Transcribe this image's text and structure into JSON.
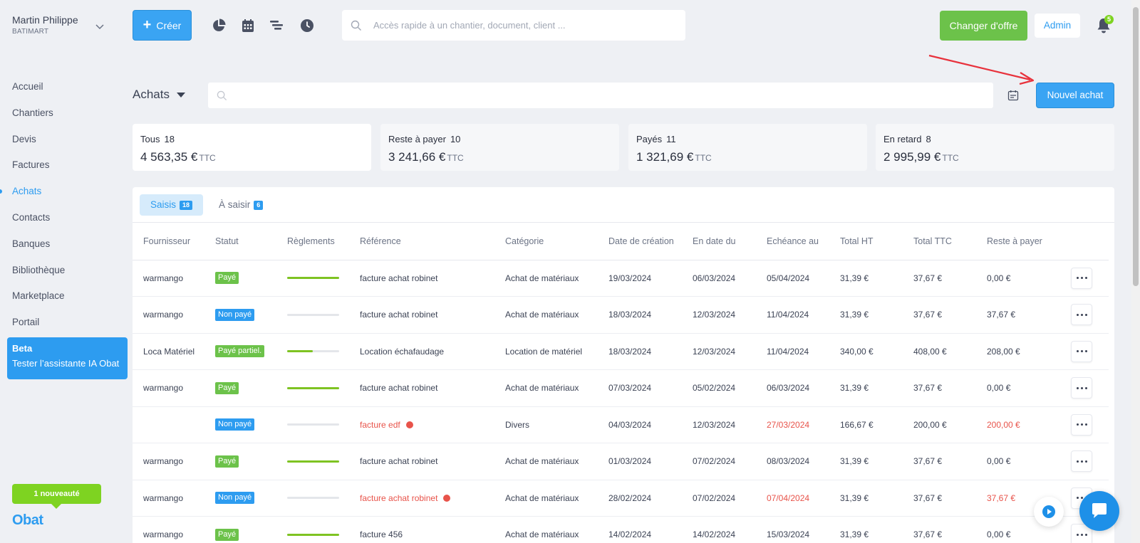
{
  "user": {
    "name": "Martin Philippe",
    "company": "BATIMART"
  },
  "nav": {
    "items": [
      {
        "label": "Accueil"
      },
      {
        "label": "Chantiers"
      },
      {
        "label": "Devis"
      },
      {
        "label": "Factures"
      },
      {
        "label": "Achats",
        "active": true
      },
      {
        "label": "Contacts"
      },
      {
        "label": "Banques"
      },
      {
        "label": "Bibliothèque"
      },
      {
        "label": "Marketplace"
      },
      {
        "label": "Portail"
      }
    ]
  },
  "beta": {
    "title": "Beta",
    "text": "Tester l’assistante IA Obat"
  },
  "news_badge": "1 nouveauté",
  "logo": "Obat",
  "topbar": {
    "create_label": "Créer",
    "icons": [
      "pie-chart-icon",
      "calendar-icon",
      "gantt-icon",
      "clock-icon"
    ],
    "search_placeholder": "Accès rapide à un chantier, document, client ...",
    "offer_label": "Changer d'offre",
    "admin_label": "Admin",
    "notif_count": "5"
  },
  "page": {
    "title": "Achats",
    "search_placeholder": "",
    "new_label": "Nouvel achat"
  },
  "summary": [
    {
      "label": "Tous",
      "count": "18",
      "amount": "4 563,35 €",
      "suffix": "TTC"
    },
    {
      "label": "Reste à payer",
      "count": "10",
      "amount": "3 241,66 €",
      "suffix": "TTC"
    },
    {
      "label": "Payés",
      "count": "11",
      "amount": "1 321,69 €",
      "suffix": "TTC"
    },
    {
      "label": "En retard",
      "count": "8",
      "amount": "2 995,99 €",
      "suffix": "TTC"
    }
  ],
  "tabs": [
    {
      "label": "Saisis",
      "count": "18"
    },
    {
      "label": "À saisir",
      "count": "6"
    }
  ],
  "table": {
    "headers": [
      "Fournisseur",
      "Statut",
      "Règlements",
      "Référence",
      "Catégorie",
      "Date de création",
      "En date du",
      "Echéance au",
      "Total HT",
      "Total TTC",
      "Reste à payer"
    ],
    "rows": [
      {
        "supplier": "warmango",
        "status": "Payé",
        "status_type": "paid",
        "progress": 1.0,
        "reference": "facture achat robinet",
        "late": false,
        "category": "Achat de matériaux",
        "created": "19/03/2024",
        "date": "06/03/2024",
        "due": "05/04/2024",
        "ht": "31,39 €",
        "ttc": "37,67 €",
        "remaining": "0,00 €"
      },
      {
        "supplier": "warmango",
        "status": "Non payé",
        "status_type": "unpaid",
        "progress": 0,
        "reference": "facture achat robinet",
        "late": false,
        "category": "Achat de matériaux",
        "created": "18/03/2024",
        "date": "12/03/2024",
        "due": "11/04/2024",
        "ht": "31,39 €",
        "ttc": "37,67 €",
        "remaining": "37,67 €"
      },
      {
        "supplier": "Loca Matériel",
        "status": "Payé partiel.",
        "status_type": "partial",
        "progress": 0.49,
        "reference": "Location échafaudage",
        "late": false,
        "category": "Location de matériel",
        "created": "18/03/2024",
        "date": "12/03/2024",
        "due": "11/04/2024",
        "ht": "340,00 €",
        "ttc": "408,00 €",
        "remaining": "208,00 €"
      },
      {
        "supplier": "warmango",
        "status": "Payé",
        "status_type": "paid",
        "progress": 1.0,
        "reference": "facture achat robinet",
        "late": false,
        "category": "Achat de matériaux",
        "created": "07/03/2024",
        "date": "05/02/2024",
        "due": "06/03/2024",
        "ht": "31,39 €",
        "ttc": "37,67 €",
        "remaining": "0,00 €"
      },
      {
        "supplier": "",
        "status": "Non payé",
        "status_type": "unpaid",
        "progress": 0,
        "reference": "facture edf",
        "late": true,
        "category": "Divers",
        "created": "04/03/2024",
        "date": "12/03/2024",
        "due": "27/03/2024",
        "ht": "166,67 €",
        "ttc": "200,00 €",
        "remaining": "200,00 €"
      },
      {
        "supplier": "warmango",
        "status": "Payé",
        "status_type": "paid",
        "progress": 1.0,
        "reference": "facture achat robinet",
        "late": false,
        "category": "Achat de matériaux",
        "created": "01/03/2024",
        "date": "07/02/2024",
        "due": "08/03/2024",
        "ht": "31,39 €",
        "ttc": "37,67 €",
        "remaining": "0,00 €"
      },
      {
        "supplier": "warmango",
        "status": "Non payé",
        "status_type": "unpaid",
        "progress": 0,
        "reference": "facture achat robinet",
        "late": true,
        "category": "Achat de matériaux",
        "created": "28/02/2024",
        "date": "07/02/2024",
        "due": "07/04/2024",
        "ht": "31,39 €",
        "ttc": "37,67 €",
        "remaining": "37,67 €"
      },
      {
        "supplier": "warmango",
        "status": "Payé",
        "status_type": "paid",
        "progress": 1.0,
        "reference": "facture 456",
        "late": false,
        "category": "Achat de matériaux",
        "created": "14/02/2024",
        "date": "14/02/2024",
        "due": "15/03/2024",
        "ht": "31,39 €",
        "ttc": "37,67 €",
        "remaining": "0,00 €"
      }
    ]
  },
  "colors": {
    "accent": "#2d9cf0",
    "success": "#6cc24a",
    "danger": "#e8534a"
  }
}
